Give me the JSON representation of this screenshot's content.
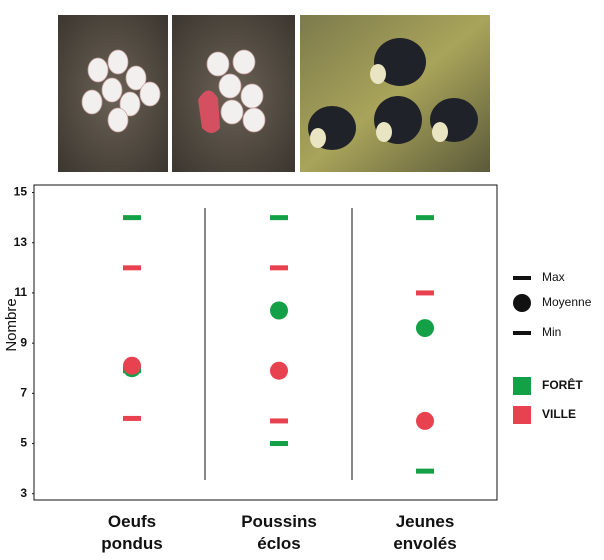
{
  "chart_data": {
    "type": "range-dot",
    "y_label": "Nombre",
    "categories": [
      "Oeufs pondus",
      "Poussins éclos",
      "Jeunes envolés"
    ],
    "stat_labels": [
      "Max",
      "Moyenne",
      "Min"
    ],
    "series": [
      {
        "name": "FORÊT",
        "color": "#14a047",
        "max": [
          14,
          14,
          14
        ],
        "mean": [
          8,
          10.3,
          9.6
        ],
        "min": [
          7.9,
          5,
          3.9
        ]
      },
      {
        "name": "VILLE",
        "color": "#e8414f",
        "max": [
          12,
          12,
          11
        ],
        "mean": [
          8.1,
          7.9,
          5.9
        ],
        "min": [
          6,
          5.9,
          null
        ]
      }
    ],
    "ylim": [
      2.75,
      15.3
    ],
    "yticks": [
      3,
      5,
      7,
      9,
      11,
      13,
      15
    ]
  }
}
